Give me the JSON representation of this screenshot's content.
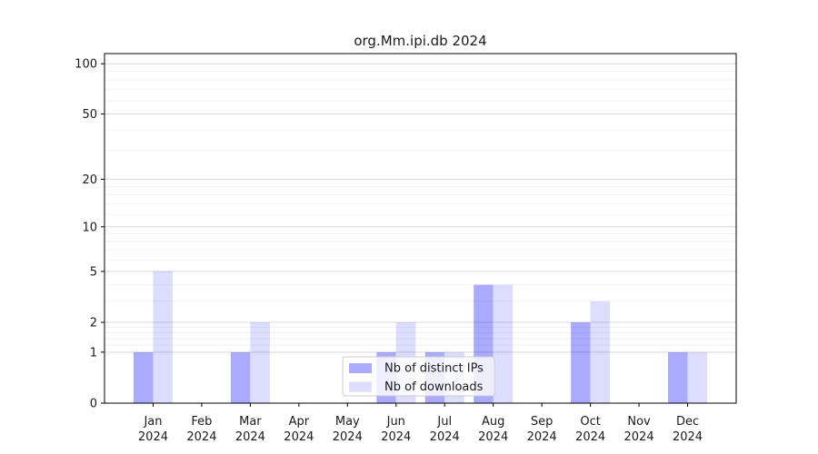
{
  "chart_data": {
    "type": "bar",
    "title": "org.Mm.ipi.db 2024",
    "categories": [
      {
        "month": "Jan",
        "year": "2024"
      },
      {
        "month": "Feb",
        "year": "2024"
      },
      {
        "month": "Mar",
        "year": "2024"
      },
      {
        "month": "Apr",
        "year": "2024"
      },
      {
        "month": "May",
        "year": "2024"
      },
      {
        "month": "Jun",
        "year": "2024"
      },
      {
        "month": "Jul",
        "year": "2024"
      },
      {
        "month": "Aug",
        "year": "2024"
      },
      {
        "month": "Sep",
        "year": "2024"
      },
      {
        "month": "Oct",
        "year": "2024"
      },
      {
        "month": "Nov",
        "year": "2024"
      },
      {
        "month": "Dec",
        "year": "2024"
      }
    ],
    "series": [
      {
        "name": "Nb of distinct IPs",
        "color": "#aaaaff",
        "values": [
          1,
          0,
          1,
          0,
          0,
          1,
          1,
          4,
          0,
          2,
          0,
          1
        ]
      },
      {
        "name": "Nb of downloads",
        "color": "#ddddff",
        "values": [
          5,
          0,
          2,
          0,
          0,
          2,
          1,
          4,
          0,
          3,
          0,
          1
        ]
      }
    ],
    "yscale": "log1p",
    "ylim": [
      0,
      115
    ],
    "yticks": [
      0,
      1,
      2,
      5,
      10,
      20,
      50,
      100
    ],
    "minor_yticks": [
      1.2,
      1.4,
      1.6,
      1.8,
      3,
      4,
      6,
      7,
      8,
      9,
      12,
      14,
      16,
      18,
      30,
      40,
      60,
      70,
      80,
      90
    ],
    "grid": true,
    "legend": {
      "position": "lower center"
    },
    "colors": {
      "axis": "#000000",
      "text": "#1a1a1a",
      "grid": "#000000",
      "legend_border": "#cccccc",
      "legend_bg": "rgba(255,255,255,0.8)",
      "background": "#ffffff"
    }
  }
}
